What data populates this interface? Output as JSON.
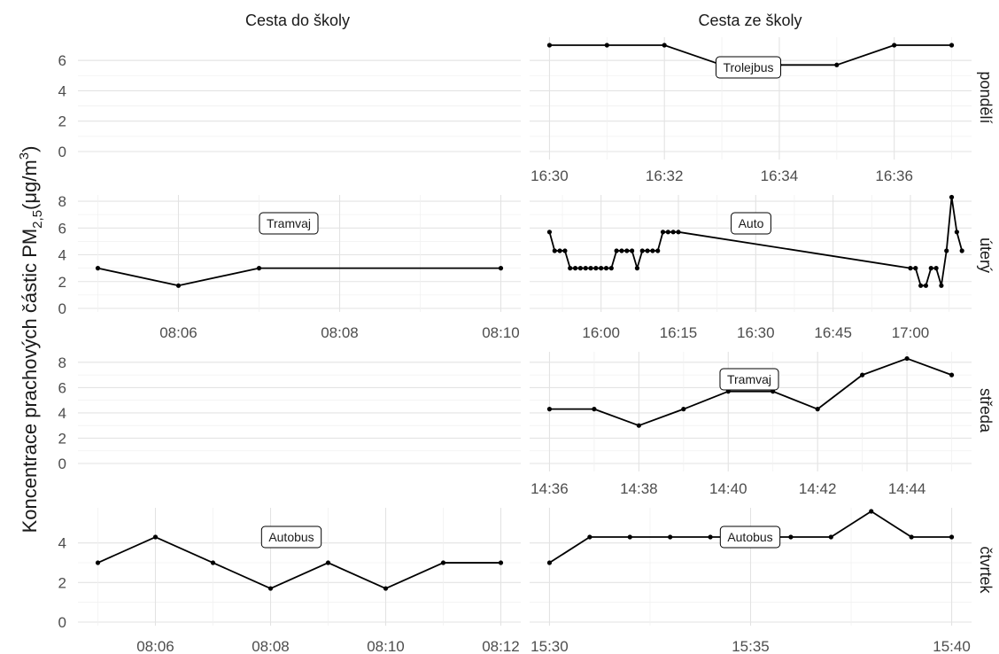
{
  "y_axis_title": "Koncentrace prachových částic  PM",
  "y_axis_title_sub": "2,5",
  "y_axis_title_unit": "(μg/m",
  "y_axis_title_sup": "3",
  "y_axis_title_close": ")",
  "column_titles": [
    "Cesta do školy",
    "Cesta ze školy"
  ],
  "row_titles": [
    "pondělí",
    "úterý",
    "středa",
    "čtvrtek"
  ],
  "chart_data": [
    {
      "type": "line",
      "day": "pondělí",
      "trip": "Cesta ze školy",
      "mode": "Trolejbus",
      "xlim": [
        "16:30",
        "16:37"
      ],
      "x": [
        "16:30",
        "16:31",
        "16:32",
        "16:33",
        "16:34",
        "16:35",
        "16:36",
        "16:37"
      ],
      "y": [
        7,
        7,
        7,
        5.7,
        5.7,
        5.7,
        7,
        7
      ],
      "ylim": [
        0,
        7
      ],
      "yticks": [
        0,
        2,
        4,
        6
      ],
      "xticks": [
        "16:30",
        "16:32",
        "16:34",
        "16:36"
      ]
    },
    {
      "type": "line",
      "day": "úterý",
      "trip": "Cesta do školy",
      "mode": "Tramvaj",
      "xlim": [
        "08:05",
        "08:10"
      ],
      "x": [
        "08:05",
        "08:06",
        "08:07",
        "08:10"
      ],
      "y": [
        3,
        1.7,
        3,
        3
      ],
      "ylim": [
        0,
        8.2
      ],
      "yticks": [
        0,
        2,
        4,
        6,
        8
      ],
      "xticks": [
        "08:06",
        "08:08",
        "08:10"
      ]
    },
    {
      "type": "line",
      "day": "úterý",
      "trip": "Cesta ze školy",
      "mode": "Auto",
      "xlim": [
        "15:50",
        "17:08"
      ],
      "x": [
        "15:50",
        "15:51",
        "15:52",
        "15:53",
        "15:54",
        "15:55",
        "15:56",
        "15:57",
        "15:58",
        "15:59",
        "16:00",
        "16:01",
        "16:02",
        "16:03",
        "16:04",
        "16:05",
        "16:06",
        "16:07",
        "16:08",
        "16:09",
        "16:10",
        "16:11",
        "16:12",
        "16:13",
        "16:14",
        "16:15",
        "17:00",
        "17:01",
        "17:02",
        "17:03",
        "17:04",
        "17:05",
        "17:06",
        "17:07",
        "17:08"
      ],
      "y": [
        5.7,
        4.3,
        4.3,
        4.3,
        3,
        3,
        3,
        3,
        3,
        3,
        3,
        3,
        3,
        4.3,
        4.3,
        4.3,
        4.3,
        3,
        4.3,
        4.3,
        4.3,
        4.3,
        5.7,
        5.7,
        5.7,
        5.7,
        3,
        3,
        1.7,
        1.7,
        3,
        3,
        1.7,
        4.3,
        8.3
      ],
      "tail": {
        "x": [
          "17:09",
          "17:10"
        ],
        "y": [
          5.7,
          4.3
        ]
      },
      "ylim": [
        0,
        8.2
      ],
      "yticks": [
        0,
        2,
        4,
        6,
        8
      ],
      "xticks": [
        "16:00",
        "16:15",
        "16:30",
        "16:45",
        "17:00"
      ]
    },
    {
      "type": "line",
      "day": "středa",
      "trip": "Cesta ze školy",
      "mode": "Tramvaj",
      "xlim": [
        "14:36",
        "14:45"
      ],
      "x": [
        "14:36",
        "14:37",
        "14:38",
        "14:39",
        "14:40",
        "14:41",
        "14:42",
        "14:43",
        "14:44",
        "14:45"
      ],
      "y": [
        4.3,
        4.3,
        3,
        4.3,
        5.7,
        5.7,
        4.3,
        7,
        8.3,
        7
      ],
      "ylim": [
        0,
        8.2
      ],
      "yticks": [
        0,
        2,
        4,
        6,
        8
      ],
      "xticks": [
        "14:36",
        "14:38",
        "14:40",
        "14:42",
        "14:44"
      ]
    },
    {
      "type": "line",
      "day": "čtvrtek",
      "trip": "Cesta do školy",
      "mode": "Autobus",
      "xlim": [
        "08:05",
        "08:12"
      ],
      "x": [
        "08:05",
        "08:06",
        "08:07",
        "08:08",
        "08:09",
        "08:10",
        "08:11",
        "08:12"
      ],
      "y": [
        3,
        4.3,
        3,
        1.7,
        3,
        1.7,
        3,
        3
      ],
      "ylim": [
        0,
        5.6
      ],
      "yticks": [
        0,
        2,
        4
      ],
      "xticks": [
        "08:06",
        "08:08",
        "08:10",
        "08:12"
      ]
    },
    {
      "type": "line",
      "day": "čtvrtek",
      "trip": "Cesta ze školy",
      "mode": "Autobus",
      "xlim": [
        "15:30",
        "15:40"
      ],
      "x": [
        "15:30",
        "15:31",
        "15:32",
        "15:33",
        "15:34",
        "15:35",
        "15:36",
        "15:37",
        "15:38",
        "15:39",
        "15:40"
      ],
      "y": [
        3,
        4.3,
        4.3,
        4.3,
        4.3,
        4.3,
        4.3,
        4.3,
        5.6,
        4.3,
        4.3
      ],
      "ylim": [
        0,
        5.6
      ],
      "yticks": [
        0,
        2,
        4
      ],
      "xticks": [
        "15:30",
        "15:35",
        "15:40"
      ]
    }
  ]
}
